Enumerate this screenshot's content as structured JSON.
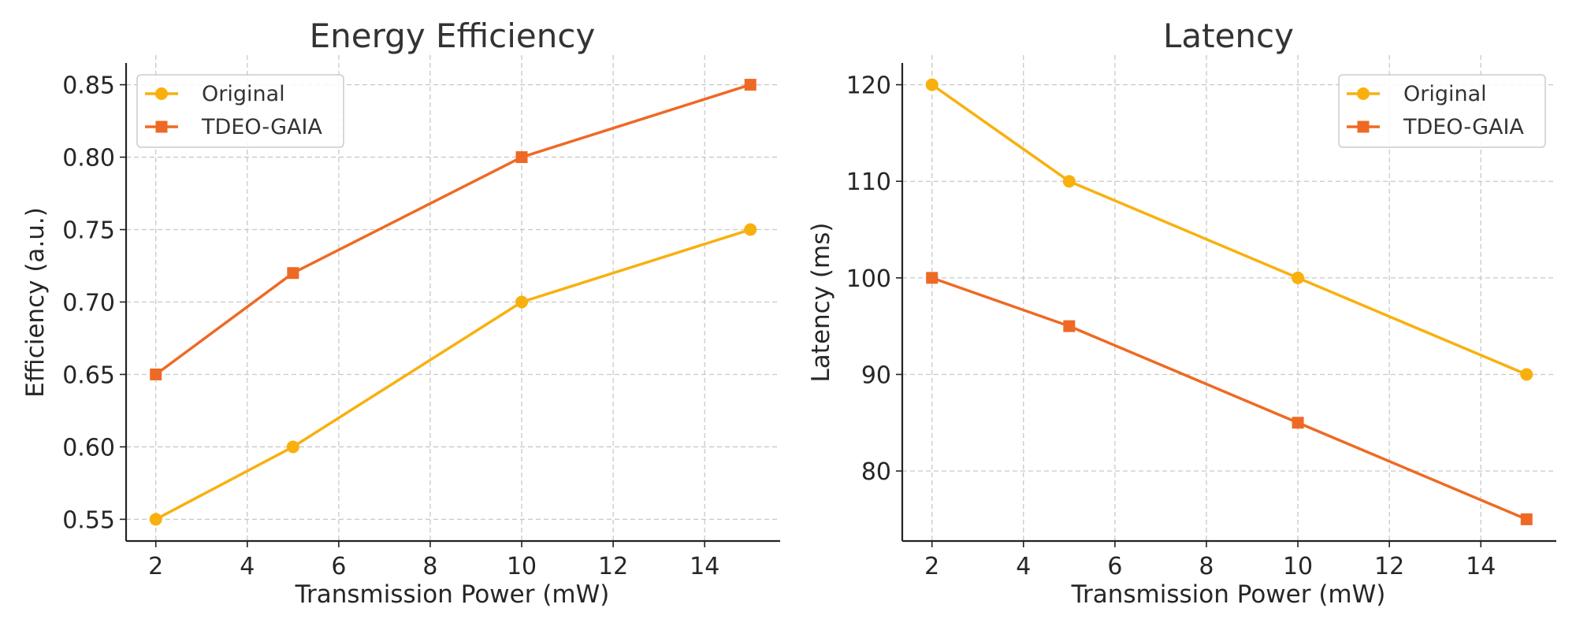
{
  "chart_data": [
    {
      "type": "line",
      "title": "Energy Efficiency",
      "xlabel": "Transmission Power (mW)",
      "ylabel": "Efficiency (a.u.)",
      "x": [
        2,
        5,
        10,
        15
      ],
      "xlim": [
        1.35,
        15.65
      ],
      "ylim": [
        0.535,
        0.865
      ],
      "xticks": [
        2,
        4,
        6,
        8,
        10,
        12,
        14
      ],
      "xtick_labels": [
        "2",
        "4",
        "6",
        "8",
        "10",
        "12",
        "14"
      ],
      "yticks": [
        0.55,
        0.6,
        0.65,
        0.7,
        0.75,
        0.8,
        0.85
      ],
      "ytick_labels": [
        "0.55",
        "0.60",
        "0.65",
        "0.70",
        "0.75",
        "0.80",
        "0.85"
      ],
      "grid": true,
      "legend_position": "top-left",
      "series": [
        {
          "name": "Original",
          "values": [
            0.55,
            0.6,
            0.7,
            0.75
          ],
          "color": "#F9B00E",
          "marker": "circle"
        },
        {
          "name": "TDEO-GAIA",
          "values": [
            0.65,
            0.72,
            0.8,
            0.85
          ],
          "color": "#EE6A24",
          "marker": "square"
        }
      ]
    },
    {
      "type": "line",
      "title": "Latency",
      "xlabel": "Transmission Power (mW)",
      "ylabel": "Latency (ms)",
      "x": [
        2,
        5,
        10,
        15
      ],
      "xlim": [
        1.35,
        15.65
      ],
      "ylim": [
        72.75,
        122.25
      ],
      "xticks": [
        2,
        4,
        6,
        8,
        10,
        12,
        14
      ],
      "xtick_labels": [
        "2",
        "4",
        "6",
        "8",
        "10",
        "12",
        "14"
      ],
      "yticks": [
        80,
        90,
        100,
        110,
        120
      ],
      "ytick_labels": [
        "80",
        "90",
        "100",
        "110",
        "120"
      ],
      "grid": true,
      "legend_position": "top-right",
      "series": [
        {
          "name": "Original",
          "values": [
            120,
            110,
            100,
            90
          ],
          "color": "#F9B00E",
          "marker": "circle"
        },
        {
          "name": "TDEO-GAIA",
          "values": [
            100,
            95,
            85,
            75
          ],
          "color": "#EE6A24",
          "marker": "square"
        }
      ]
    }
  ]
}
